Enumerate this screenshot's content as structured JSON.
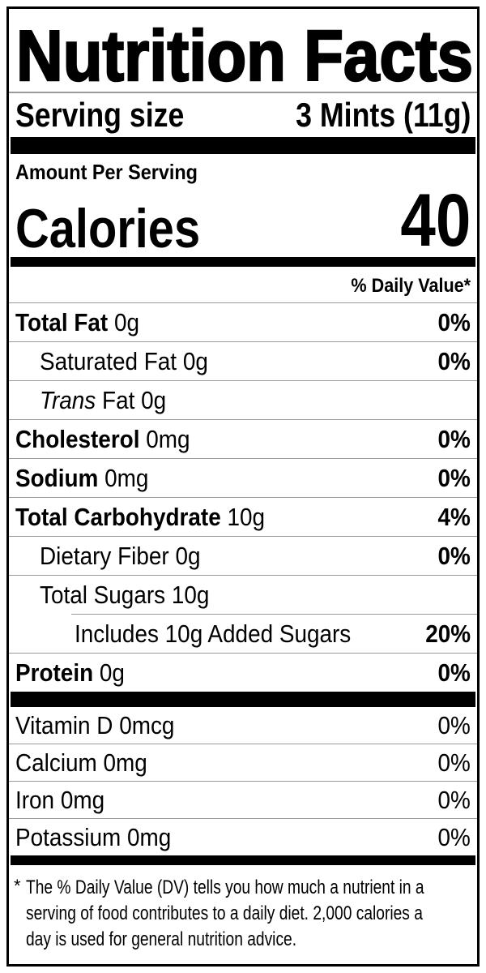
{
  "title": "Nutrition Facts",
  "serving": {
    "label": "Serving size",
    "value": "3 Mints (11g)"
  },
  "calories": {
    "heading": "Amount Per Serving",
    "label": "Calories",
    "value": "40"
  },
  "dv_header": "% Daily Value*",
  "nutrients": [
    {
      "name": "Total Fat",
      "amount": "0g",
      "dv": "0%"
    },
    {
      "name": "Saturated Fat",
      "amount": "0g",
      "dv": "0%"
    },
    {
      "name": "Trans",
      "amount": "Fat 0g",
      "dv": ""
    },
    {
      "name": "Cholesterol",
      "amount": "0mg",
      "dv": "0%"
    },
    {
      "name": "Sodium",
      "amount": "0mg",
      "dv": "0%"
    },
    {
      "name": "Total Carbohydrate",
      "amount": "10g",
      "dv": "4%"
    },
    {
      "name": "Dietary Fiber",
      "amount": "0g",
      "dv": "0%"
    },
    {
      "name": "Total Sugars",
      "amount": "10g",
      "dv": ""
    },
    {
      "name": "Includes 10g Added Sugars",
      "amount": "",
      "dv": "20%"
    },
    {
      "name": "Protein",
      "amount": "0g",
      "dv": "0%"
    }
  ],
  "micronutrients": [
    {
      "name": "Vitamin D",
      "amount": "0mcg",
      "dv": "0%"
    },
    {
      "name": "Calcium",
      "amount": "0mg",
      "dv": "0%"
    },
    {
      "name": "Iron",
      "amount": "0mg",
      "dv": "0%"
    },
    {
      "name": "Potassium",
      "amount": "0mg",
      "dv": "0%"
    }
  ],
  "footnote": {
    "marker": "*",
    "lines": [
      "The % Daily Value (DV) tells you how much a nutrient in a",
      "serving of food contributes to a daily diet. 2,000 calories a",
      "day is used for general nutrition advice."
    ]
  },
  "colors": {
    "ink": "#000000",
    "divider": "#999999",
    "background": "#ffffff"
  }
}
